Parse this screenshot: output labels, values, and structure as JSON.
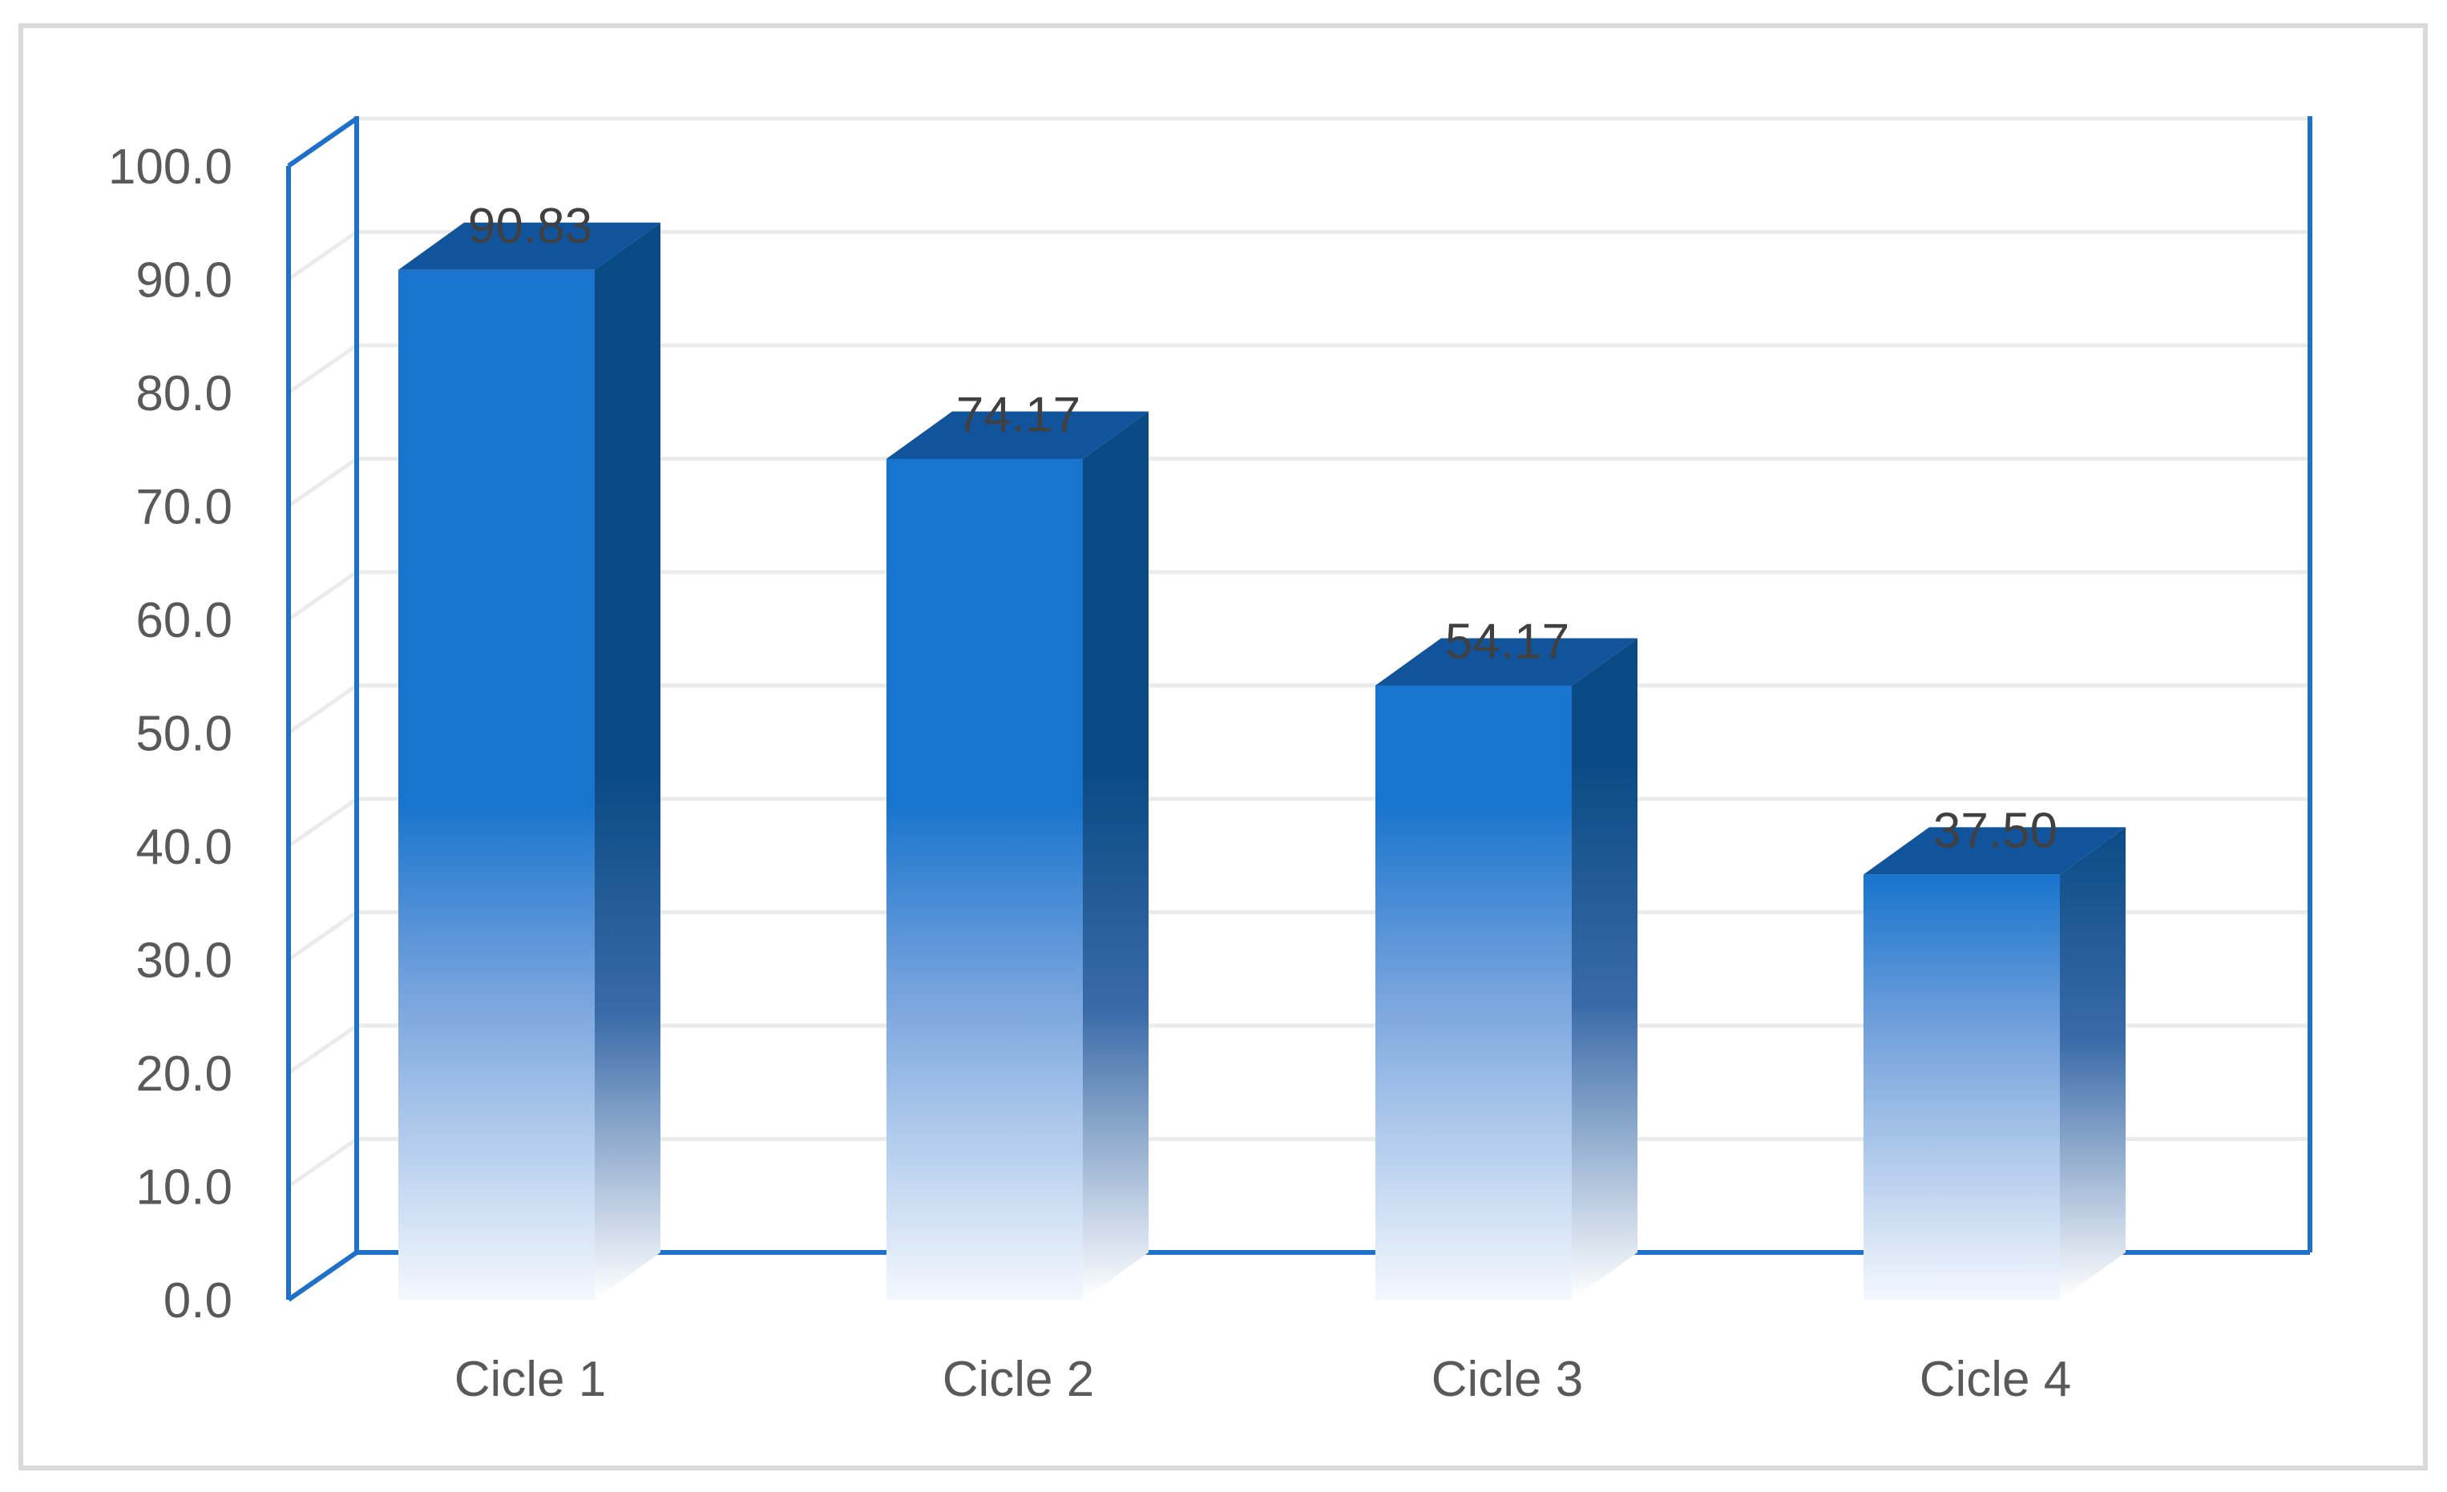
{
  "chart_data": {
    "type": "bar",
    "title": "",
    "xlabel": "",
    "ylabel": "",
    "categories": [
      "Cicle 1",
      "Cicle 2",
      "Cicle 3",
      "Cicle 4"
    ],
    "series": [
      {
        "values": [
          90.83,
          74.17,
          54.17,
          37.5
        ],
        "labels": [
          "90.83",
          "74.17",
          "54.17",
          "37.50"
        ]
      }
    ],
    "ylim": [
      0,
      100
    ],
    "yticks": [
      0,
      10,
      20,
      30,
      40,
      50,
      60,
      70,
      80,
      90,
      100
    ],
    "ytick_labels": [
      "0.0",
      "10.0",
      "20.0",
      "30.0",
      "40.0",
      "50.0",
      "60.0",
      "70.0",
      "80.0",
      "90.0",
      "100.0"
    ],
    "grid": true,
    "legend": "none",
    "style": "3d-column",
    "colors": {
      "bar_front": "#1874CD",
      "bar_side": "#0B4B85",
      "bar_top": "#11549B",
      "axis": "#1F70C8",
      "grid": "#EBEBEB",
      "frame": "#D9D9D9"
    }
  }
}
